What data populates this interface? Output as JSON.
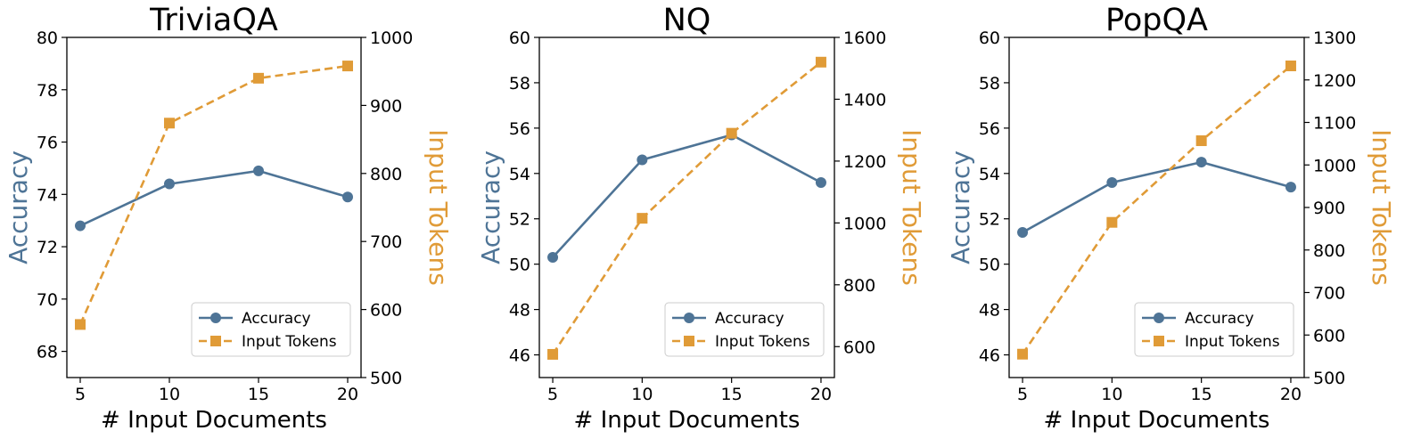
{
  "colors": {
    "accuracy": "#4e7496",
    "tokens": "#e09b37"
  },
  "chart_data": [
    {
      "type": "line",
      "title": "TriviaQA",
      "xlabel": "# Input Documents",
      "ylabel": "Accuracy",
      "ylabel2": "Input Tokens",
      "x": [
        5,
        10,
        15,
        20
      ],
      "xticks": [
        5,
        10,
        15,
        20
      ],
      "xlim": [
        4.25,
        20.75
      ],
      "ylim": [
        67,
        80
      ],
      "yticks": [
        68,
        70,
        72,
        74,
        76,
        78,
        80
      ],
      "ylim2": [
        500,
        1000
      ],
      "yticks2": [
        500,
        600,
        700,
        800,
        900,
        1000
      ],
      "legend": "lower-right",
      "series": [
        {
          "name": "Accuracy",
          "axis": "left",
          "marker": "circle",
          "style": "solid",
          "values": [
            72.8,
            74.4,
            74.9,
            73.9
          ]
        },
        {
          "name": "Input Tokens",
          "axis": "right",
          "marker": "square",
          "style": "dashed",
          "values": [
            578,
            874,
            940,
            958
          ]
        }
      ]
    },
    {
      "type": "line",
      "title": "NQ",
      "xlabel": "# Input Documents",
      "ylabel": "Accuracy",
      "ylabel2": "Input Tokens",
      "x": [
        5,
        10,
        15,
        20
      ],
      "xticks": [
        5,
        10,
        15,
        20
      ],
      "xlim": [
        4.25,
        20.75
      ],
      "ylim": [
        45,
        60
      ],
      "yticks": [
        46,
        48,
        50,
        52,
        54,
        56,
        58,
        60
      ],
      "ylim2": [
        500,
        1600
      ],
      "yticks2": [
        600,
        800,
        1000,
        1200,
        1400,
        1600
      ],
      "legend": "lower-right",
      "series": [
        {
          "name": "Accuracy",
          "axis": "left",
          "marker": "circle",
          "style": "solid",
          "values": [
            50.3,
            54.6,
            55.7,
            53.6
          ]
        },
        {
          "name": "Input Tokens",
          "axis": "right",
          "marker": "square",
          "style": "dashed",
          "values": [
            575,
            1015,
            1290,
            1520
          ]
        }
      ]
    },
    {
      "type": "line",
      "title": "PopQA",
      "xlabel": "# Input Documents",
      "ylabel": "Accuracy",
      "ylabel2": "Input Tokens",
      "x": [
        5,
        10,
        15,
        20
      ],
      "xticks": [
        5,
        10,
        15,
        20
      ],
      "xlim": [
        4.25,
        20.75
      ],
      "ylim": [
        45,
        60
      ],
      "yticks": [
        46,
        48,
        50,
        52,
        54,
        56,
        58,
        60
      ],
      "ylim2": [
        500,
        1300
      ],
      "yticks2": [
        500,
        600,
        700,
        800,
        900,
        1000,
        1100,
        1200,
        1300
      ],
      "legend": "lower-right",
      "series": [
        {
          "name": "Accuracy",
          "axis": "left",
          "marker": "circle",
          "style": "solid",
          "values": [
            51.4,
            53.6,
            54.5,
            53.4
          ]
        },
        {
          "name": "Input Tokens",
          "axis": "right",
          "marker": "square",
          "style": "dashed",
          "values": [
            555,
            865,
            1057,
            1233
          ]
        }
      ]
    }
  ]
}
